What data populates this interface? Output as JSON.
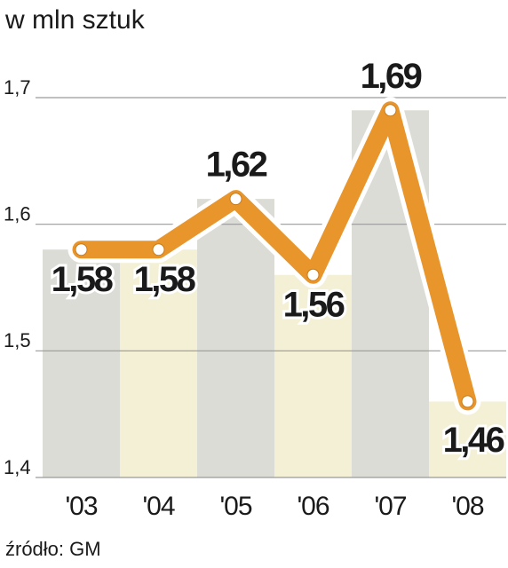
{
  "chart_data": {
    "type": "line",
    "title": "w mln sztuk",
    "source": "źródło: GM",
    "categories": [
      "'03",
      "'04",
      "'05",
      "'06",
      "'07",
      "'08"
    ],
    "series": [
      {
        "name": null,
        "color": "#e8952b",
        "values": [
          1.58,
          1.58,
          1.62,
          1.56,
          1.69,
          1.46
        ],
        "value_labels": [
          "1,58",
          "1,58",
          "1,62",
          "1,56",
          "1,69",
          "1,46"
        ]
      }
    ],
    "value_label_colors": [
      "#1a1a1a",
      "#1a1a1a",
      "#1a1a1a",
      "#1a1a1a",
      "#1a1a1a",
      "#c8102e"
    ],
    "bar_colors": [
      "#dcdcd6",
      "#f3f0d5",
      "#dcdcd6",
      "#f3f0d5",
      "#dcdcd6",
      "#f3f0d5"
    ],
    "ylim": [
      1.4,
      1.7
    ],
    "yticks": [
      {
        "value": 1.4,
        "label": "1,4"
      },
      {
        "value": 1.5,
        "label": "1,5"
      },
      {
        "value": 1.6,
        "label": "1,6"
      },
      {
        "value": 1.7,
        "label": "1,7"
      }
    ],
    "grid": true
  }
}
